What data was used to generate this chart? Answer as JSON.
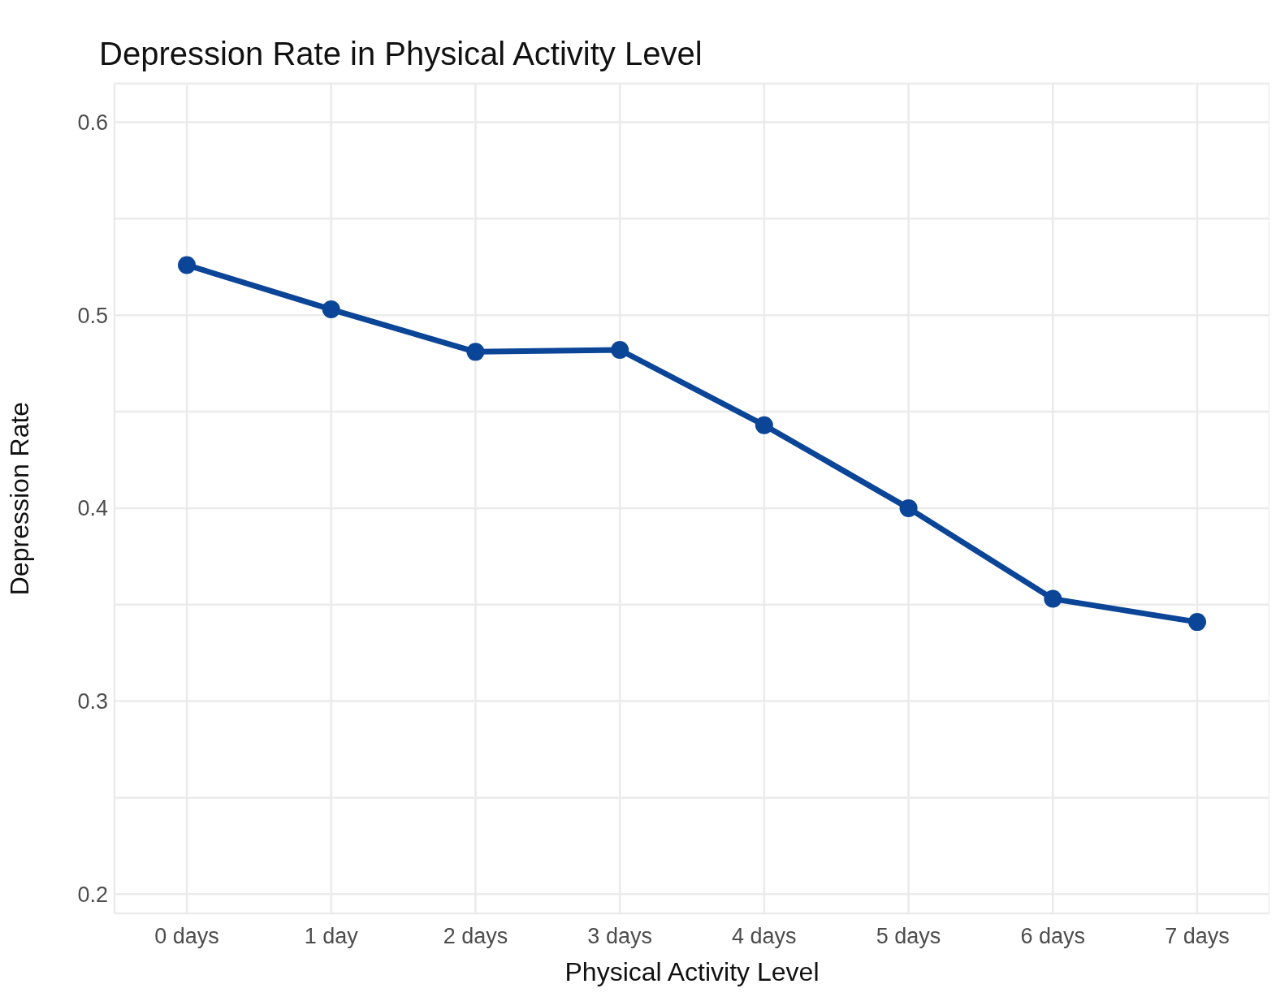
{
  "chart_data": {
    "type": "line",
    "title": "Depression Rate in Physical Activity Level",
    "xlabel": "Physical Activity Level",
    "ylabel": "Depression Rate",
    "categories": [
      "0 days",
      "1 day",
      "2 days",
      "3 days",
      "4 days",
      "5 days",
      "6 days",
      "7 days"
    ],
    "series": [
      {
        "color": "#0b4597",
        "values": [
          0.526,
          0.503,
          0.481,
          0.482,
          0.443,
          0.4,
          0.353,
          0.341
        ]
      }
    ],
    "ylim": [
      0.19,
      0.62
    ],
    "yticks": [
      0.2,
      {
        "value": 0.25,
        "label": null
      },
      0.3,
      {
        "value": 0.35,
        "label": null
      },
      0.4,
      {
        "value": 0.45,
        "label": null
      },
      0.5,
      {
        "value": 0.55,
        "label": null
      },
      0.6
    ],
    "grid": true,
    "marker": "circle",
    "line_style": "solid",
    "legend": false
  }
}
